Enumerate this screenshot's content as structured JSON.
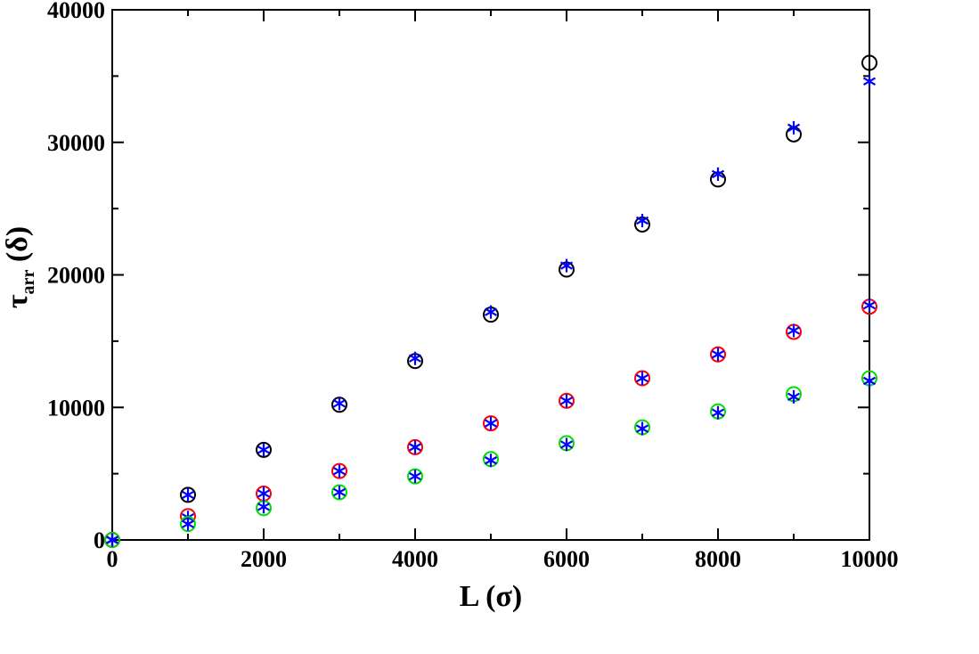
{
  "chart_data": {
    "type": "scatter",
    "title": "",
    "xlabel": "L (σ)",
    "ylabel": {
      "main": "τ",
      "sub": "arr",
      "rest": " (δ)"
    },
    "xlim": [
      0,
      10000
    ],
    "ylim": [
      0,
      40000
    ],
    "xticks": [
      0,
      2000,
      4000,
      6000,
      8000,
      10000
    ],
    "yticks": [
      0,
      10000,
      20000,
      30000,
      40000
    ],
    "xticks_minor": [
      1000,
      3000,
      5000,
      7000,
      9000
    ],
    "yticks_minor": [
      5000,
      15000,
      25000,
      35000
    ],
    "grid": false,
    "series": [
      {
        "color": "#000000",
        "marker": "circle",
        "x": [
          0,
          1000,
          2000,
          3000,
          4000,
          5000,
          6000,
          7000,
          8000,
          9000,
          10000
        ],
        "y": [
          0,
          3400,
          6800,
          10200,
          13500,
          17000,
          20400,
          23800,
          27200,
          30600,
          36000
        ]
      },
      {
        "color": "#0000ff",
        "marker": "asterisk",
        "x": [
          0,
          1000,
          2000,
          3000,
          4000,
          5000,
          6000,
          7000,
          8000,
          9000,
          10000
        ],
        "y": [
          0,
          3400,
          6800,
          10300,
          13700,
          17200,
          20700,
          24100,
          27600,
          31100,
          34600
        ]
      },
      {
        "color": "#ff0000",
        "marker": "circle",
        "x": [
          0,
          1000,
          2000,
          3000,
          4000,
          5000,
          6000,
          7000,
          8000,
          9000,
          10000
        ],
        "y": [
          0,
          1800,
          3500,
          5200,
          7000,
          8800,
          10500,
          12200,
          14000,
          15700,
          17600
        ]
      },
      {
        "color": "#0000ff",
        "marker": "asterisk",
        "x": [
          0,
          1000,
          2000,
          3000,
          4000,
          5000,
          6000,
          7000,
          8000,
          9000,
          10000
        ],
        "y": [
          0,
          1700,
          3500,
          5200,
          7000,
          8800,
          10500,
          12200,
          14000,
          15800,
          17700
        ]
      },
      {
        "color": "#00e000",
        "marker": "circle",
        "x": [
          0,
          1000,
          2000,
          3000,
          4000,
          5000,
          6000,
          7000,
          8000,
          9000,
          10000
        ],
        "y": [
          0,
          1200,
          2400,
          3600,
          4800,
          6100,
          7300,
          8500,
          9700,
          11000,
          12200
        ]
      },
      {
        "color": "#0000ff",
        "marker": "asterisk",
        "x": [
          0,
          1000,
          2000,
          3000,
          4000,
          5000,
          6000,
          7000,
          8000,
          9000,
          10000
        ],
        "y": [
          0,
          1200,
          2500,
          3600,
          4800,
          6000,
          7200,
          8400,
          9600,
          10800,
          12000
        ]
      }
    ]
  }
}
